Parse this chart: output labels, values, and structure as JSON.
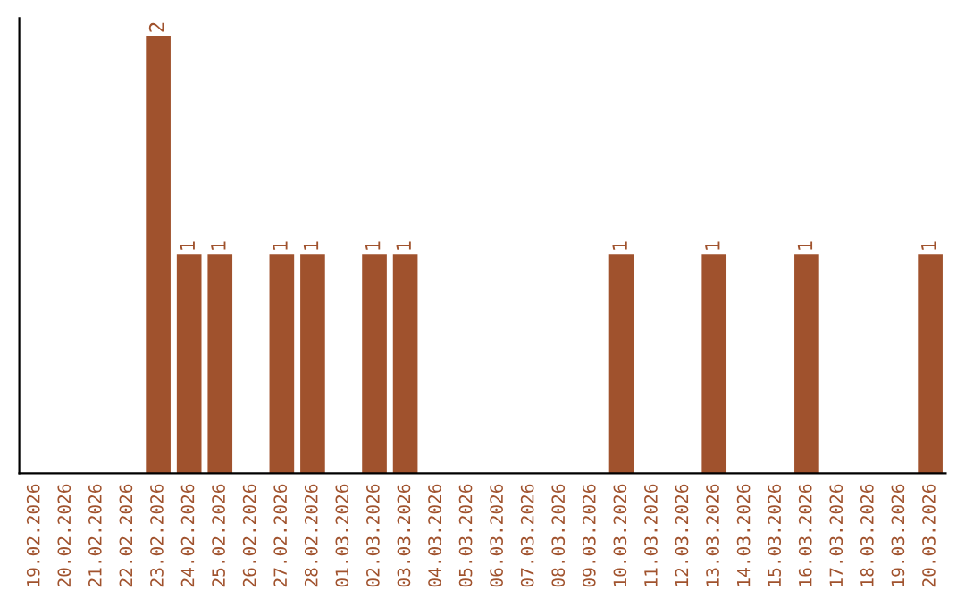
{
  "chart_data": {
    "type": "bar",
    "categories": [
      "19.02.2026",
      "20.02.2026",
      "21.02.2026",
      "22.02.2026",
      "23.02.2026",
      "24.02.2026",
      "25.02.2026",
      "26.02.2026",
      "27.02.2026",
      "28.02.2026",
      "01.03.2026",
      "02.03.2026",
      "03.03.2026",
      "04.03.2026",
      "05.03.2026",
      "06.03.2026",
      "07.03.2026",
      "08.03.2026",
      "09.03.2026",
      "10.03.2026",
      "11.03.2026",
      "12.03.2026",
      "13.03.2026",
      "14.03.2026",
      "15.03.2026",
      "16.03.2026",
      "17.03.2026",
      "18.03.2026",
      "19.03.2026",
      "20.03.2026"
    ],
    "values": [
      0,
      0,
      0,
      0,
      2,
      1,
      1,
      0,
      1,
      1,
      0,
      1,
      1,
      0,
      0,
      0,
      0,
      0,
      0,
      1,
      0,
      0,
      1,
      0,
      0,
      1,
      0,
      0,
      0,
      1
    ],
    "value_labels": [
      null,
      null,
      null,
      null,
      "2",
      "1",
      "1",
      null,
      "1",
      "1",
      null,
      "1",
      "1",
      null,
      null,
      null,
      null,
      null,
      null,
      "1",
      null,
      null,
      "1",
      null,
      null,
      "1",
      null,
      null,
      null,
      "1"
    ],
    "color": "#a0522d",
    "tick_labels": "x",
    "grid": false,
    "legend": false
  }
}
